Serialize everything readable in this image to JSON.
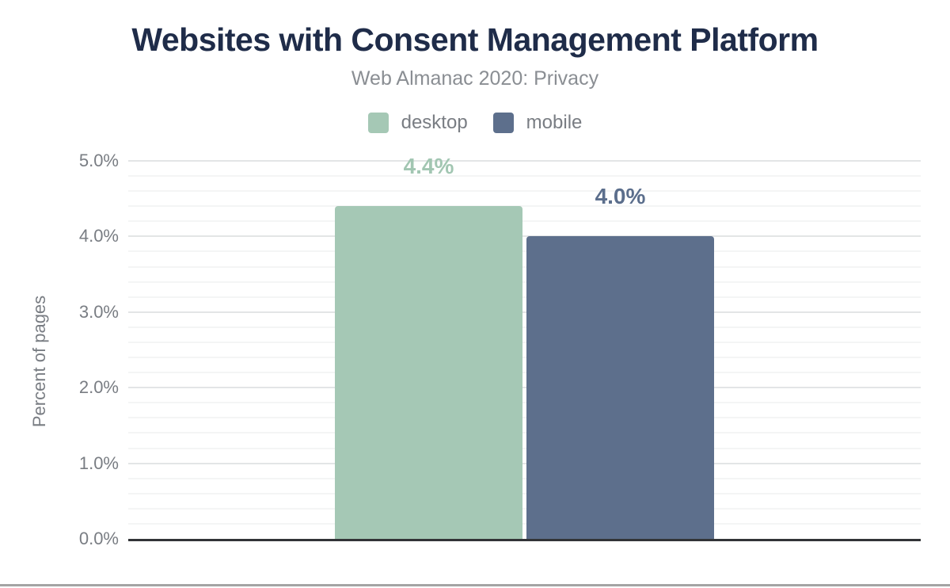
{
  "chart_data": {
    "type": "bar",
    "title": "Websites with Consent Management Platform",
    "subtitle": "Web Almanac 2020: Privacy",
    "categories": [
      "desktop",
      "mobile"
    ],
    "values": [
      4.4,
      4.0
    ],
    "value_labels": [
      "4.4%",
      "4.0%"
    ],
    "bar_colors": [
      "#a5c8b5",
      "#5d6f8c"
    ],
    "label_colors": [
      "#a2c6b2",
      "#5b6e8c"
    ],
    "xlabel": "",
    "ylabel": "Percent of pages",
    "ylim": [
      0,
      5
    ],
    "ytick_step": 1,
    "ytick_labels": [
      "0.0%",
      "1.0%",
      "2.0%",
      "3.0%",
      "4.0%",
      "5.0%"
    ],
    "minor_grid_step": 0.2,
    "grid": true,
    "legend_position": "top-center",
    "legend": [
      {
        "label": "desktop",
        "color": "#a5c8b5"
      },
      {
        "label": "mobile",
        "color": "#5d6f8c"
      }
    ]
  },
  "styles": {
    "title_color": "#1f2c49",
    "subtitle_color": "#8a8e93",
    "axis_text_color": "#797d83",
    "major_grid_color": "#e3e5e6",
    "minor_grid_color": "#f4f5f5",
    "axis_line_color": "#323437",
    "footer_line_color": "#a4a4a4",
    "background": "#ffffff"
  }
}
